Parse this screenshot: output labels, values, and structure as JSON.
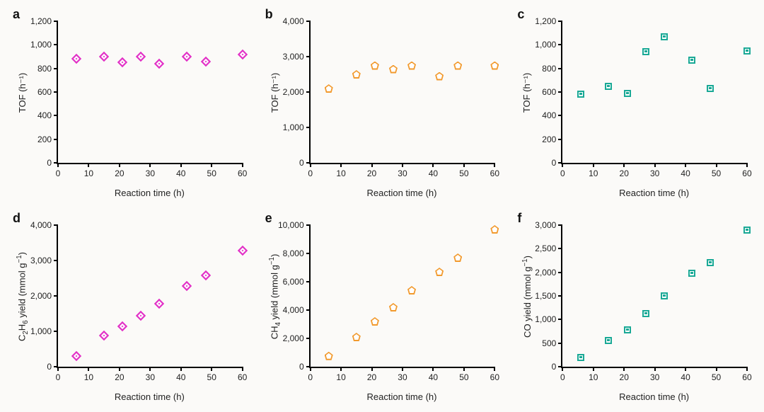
{
  "layout": {
    "rows": 2,
    "cols": 3
  },
  "background_color": "#fbfaf8",
  "axis_color": "#000000",
  "label_fontsize": 13,
  "tick_fontsize": 12,
  "panel_label_fontsize": 18,
  "panels": {
    "a": {
      "label": "a",
      "type": "scatter",
      "marker": "diamond",
      "marker_color": "#e233c7",
      "marker_size": 10,
      "xlabel": "Reaction time (h)",
      "ylabel": "TOF (h⁻¹)",
      "xlim": [
        0,
        60
      ],
      "xtick_step": 10,
      "ylim": [
        0,
        1200
      ],
      "ytick_step": 200,
      "thousands_sep": true,
      "x": [
        6,
        15,
        21,
        27,
        33,
        42,
        48,
        60
      ],
      "y": [
        880,
        900,
        850,
        900,
        840,
        900,
        860,
        920
      ]
    },
    "b": {
      "label": "b",
      "type": "scatter",
      "marker": "pentagon",
      "marker_color": "#f29a2e",
      "marker_size": 12,
      "xlabel": "Reaction time (h)",
      "ylabel": "TOF (h⁻¹)",
      "xlim": [
        0,
        60
      ],
      "xtick_step": 10,
      "ylim": [
        0,
        4000
      ],
      "ytick_step": 1000,
      "thousands_sep": true,
      "x": [
        6,
        15,
        21,
        27,
        33,
        42,
        48,
        60
      ],
      "y": [
        2100,
        2500,
        2750,
        2650,
        2750,
        2450,
        2750,
        2750
      ]
    },
    "c": {
      "label": "c",
      "type": "scatter",
      "marker": "square",
      "marker_color": "#1aa996",
      "marker_size": 10,
      "xlabel": "Reaction time (h)",
      "ylabel": "TOF (h⁻¹)",
      "xlim": [
        0,
        60
      ],
      "xtick_step": 10,
      "ylim": [
        0,
        1200
      ],
      "ytick_step": 200,
      "thousands_sep": true,
      "x": [
        6,
        15,
        21,
        27,
        33,
        42,
        48,
        60
      ],
      "y": [
        580,
        650,
        590,
        940,
        1070,
        870,
        630,
        950
      ]
    },
    "d": {
      "label": "d",
      "type": "scatter",
      "marker": "diamond",
      "marker_color": "#e233c7",
      "marker_size": 10,
      "xlabel": "Reaction time (h)",
      "ylabel_html": "C<sub>2</sub>H<sub>6</sub> yield (mmol g<sup>−1</sup>)",
      "ylabel": "C2H6 yield (mmol g⁻¹)",
      "xlim": [
        0,
        60
      ],
      "xtick_step": 10,
      "ylim": [
        0,
        4000
      ],
      "ytick_step": 1000,
      "thousands_sep": true,
      "x": [
        6,
        15,
        21,
        27,
        33,
        42,
        48,
        60
      ],
      "y": [
        310,
        880,
        1150,
        1450,
        1780,
        2280,
        2580,
        3280
      ]
    },
    "e": {
      "label": "e",
      "type": "scatter",
      "marker": "pentagon",
      "marker_color": "#f29a2e",
      "marker_size": 12,
      "xlabel": "Reaction time (h)",
      "ylabel_html": "CH<sub>4</sub> yield (mmol g<sup>−1</sup>)",
      "ylabel": "CH4 yield (mmol g⁻¹)",
      "xlim": [
        0,
        60
      ],
      "xtick_step": 10,
      "ylim": [
        0,
        10000
      ],
      "ytick_step": 2000,
      "thousands_sep": true,
      "x": [
        6,
        15,
        21,
        27,
        33,
        42,
        48,
        60
      ],
      "y": [
        760,
        2100,
        3200,
        4200,
        5400,
        6700,
        7700,
        9700
      ]
    },
    "f": {
      "label": "f",
      "type": "scatter",
      "marker": "square",
      "marker_color": "#1aa996",
      "marker_size": 10,
      "xlabel": "Reaction time (h)",
      "ylabel_html": "CO yield (mmol g<sup>−1</sup>)",
      "ylabel": "CO yield (mmol g⁻¹)",
      "xlim": [
        0,
        60
      ],
      "xtick_step": 10,
      "ylim": [
        0,
        3000
      ],
      "ytick_step": 500,
      "thousands_sep": true,
      "x": [
        6,
        15,
        21,
        27,
        33,
        42,
        48,
        60
      ],
      "y": [
        200,
        550,
        780,
        1120,
        1500,
        1980,
        2200,
        2900
      ]
    }
  },
  "order": [
    "a",
    "b",
    "c",
    "d",
    "e",
    "f"
  ]
}
